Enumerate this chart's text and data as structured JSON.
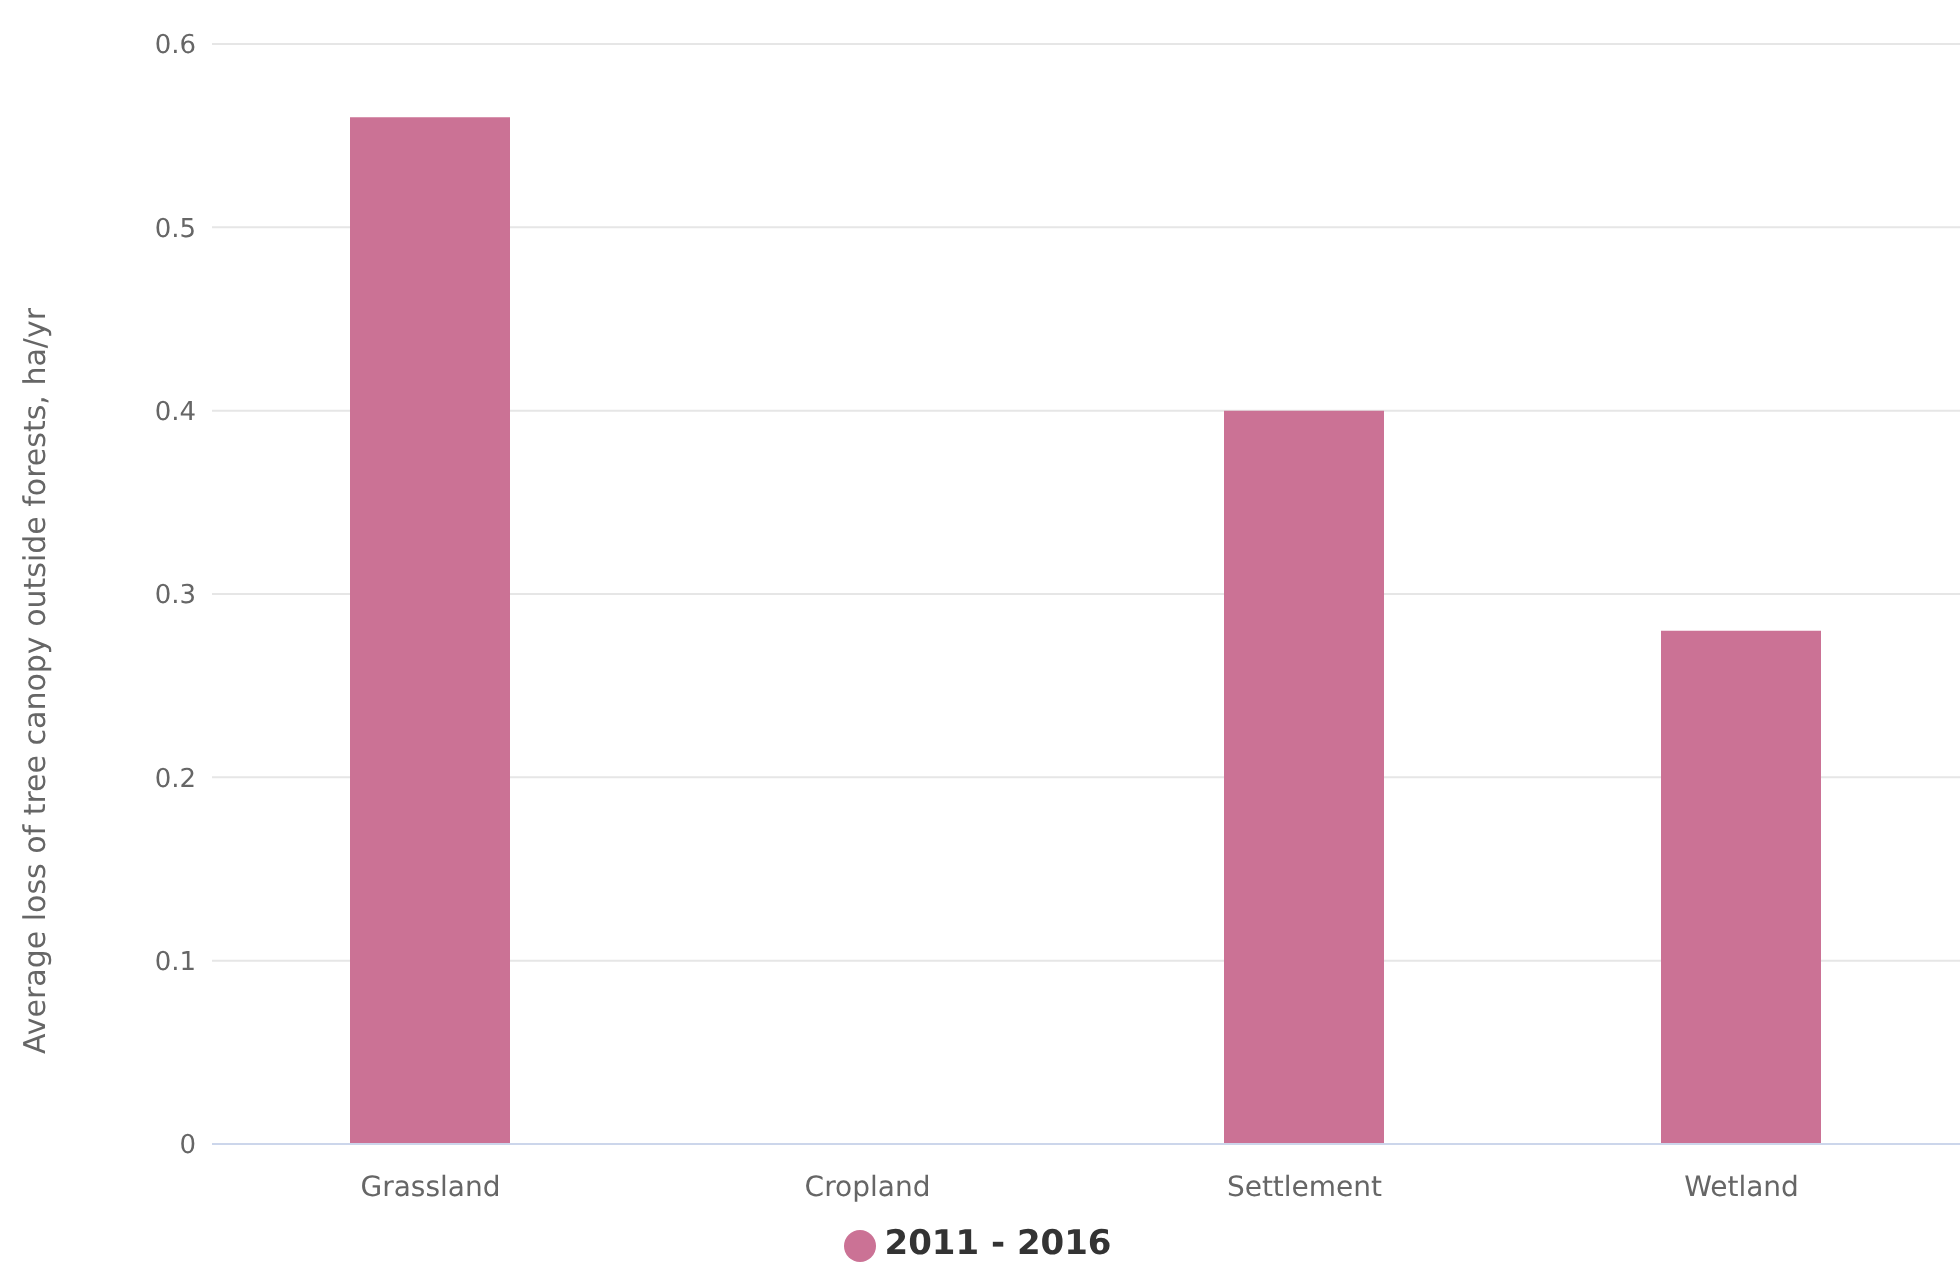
{
  "chart_data": {
    "type": "bar",
    "ylabel": "Average loss of tree canopy outside forests, ha/yr",
    "categories": [
      "Grassland",
      "Cropland",
      "Settlement",
      "Wetland"
    ],
    "series": [
      {
        "name": "2011 - 2016",
        "color": "#cb7295",
        "values": [
          0.56,
          0,
          0.4,
          0.28
        ]
      }
    ],
    "ylim": [
      0,
      0.6
    ],
    "yticks": [
      0,
      0.1,
      0.2,
      0.3,
      0.4,
      0.5,
      0.6
    ],
    "grid": "y",
    "legend": "bottom"
  }
}
